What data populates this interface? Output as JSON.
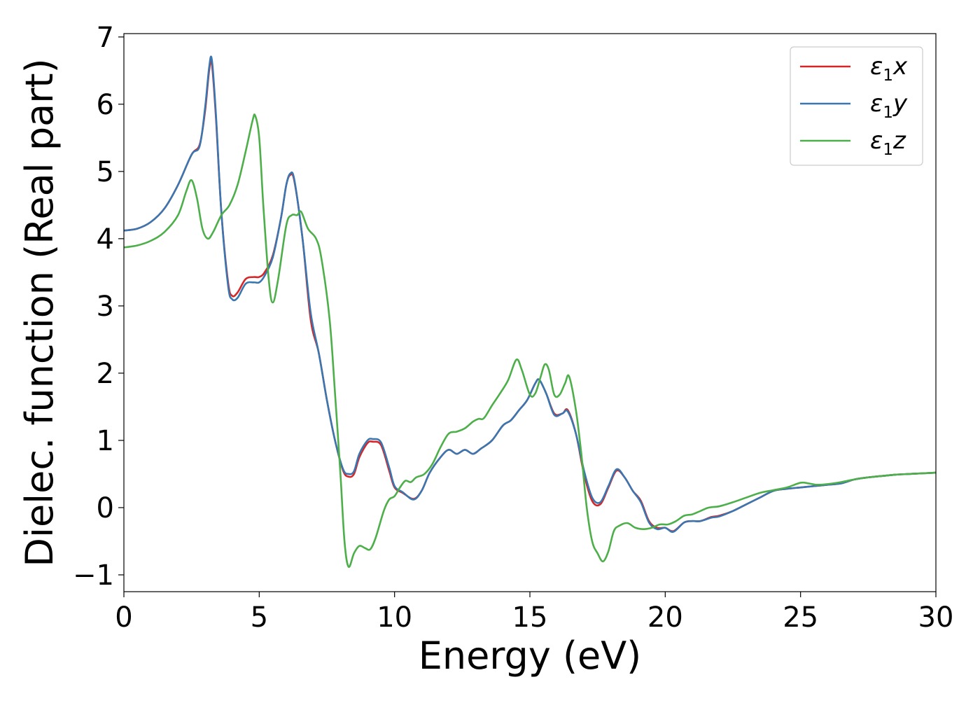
{
  "chart_data": {
    "type": "line",
    "title": "",
    "xlabel": "Energy (eV)",
    "ylabel": "Dielec. function (Real part)",
    "xlim": [
      0,
      30
    ],
    "ylim": [
      -1.25,
      7.05
    ],
    "x_ticks": [
      0,
      5,
      10,
      15,
      20,
      25,
      30
    ],
    "x_tick_labels": [
      "0",
      "5",
      "10",
      "15",
      "20",
      "25",
      "30"
    ],
    "y_ticks": [
      -1,
      0,
      1,
      2,
      3,
      4,
      5,
      6,
      7
    ],
    "y_tick_labels": [
      "−1",
      "0",
      "1",
      "2",
      "3",
      "4",
      "5",
      "6",
      "7"
    ],
    "grid": false,
    "legend_position": "top-right",
    "series": [
      {
        "name": "ε1x",
        "legend_main": "ε",
        "legend_sub": "1",
        "legend_suffix": "x",
        "color": "#d62728",
        "points": [
          [
            0,
            4.12
          ],
          [
            0.5,
            4.15
          ],
          [
            1.0,
            4.25
          ],
          [
            1.5,
            4.45
          ],
          [
            2.0,
            4.8
          ],
          [
            2.5,
            5.25
          ],
          [
            2.8,
            5.4
          ],
          [
            3.0,
            5.9
          ],
          [
            3.15,
            6.5
          ],
          [
            3.25,
            6.6
          ],
          [
            3.4,
            5.8
          ],
          [
            3.6,
            4.4
          ],
          [
            3.85,
            3.35
          ],
          [
            4.0,
            3.15
          ],
          [
            4.2,
            3.2
          ],
          [
            4.5,
            3.4
          ],
          [
            4.8,
            3.43
          ],
          [
            5.0,
            3.43
          ],
          [
            5.2,
            3.5
          ],
          [
            5.5,
            3.75
          ],
          [
            5.8,
            4.3
          ],
          [
            6.0,
            4.8
          ],
          [
            6.15,
            4.95
          ],
          [
            6.3,
            4.85
          ],
          [
            6.6,
            4.0
          ],
          [
            6.9,
            2.8
          ],
          [
            7.2,
            2.3
          ],
          [
            7.5,
            1.6
          ],
          [
            7.8,
            1.0
          ],
          [
            8.1,
            0.55
          ],
          [
            8.3,
            0.46
          ],
          [
            8.5,
            0.5
          ],
          [
            8.7,
            0.75
          ],
          [
            9.0,
            0.96
          ],
          [
            9.2,
            0.98
          ],
          [
            9.5,
            0.93
          ],
          [
            9.8,
            0.55
          ],
          [
            10.0,
            0.3
          ],
          [
            10.3,
            0.22
          ],
          [
            10.7,
            0.13
          ],
          [
            11.0,
            0.25
          ],
          [
            11.3,
            0.52
          ],
          [
            11.7,
            0.75
          ],
          [
            12.0,
            0.86
          ],
          [
            12.3,
            0.8
          ],
          [
            12.6,
            0.86
          ],
          [
            12.9,
            0.8
          ],
          [
            13.2,
            0.88
          ],
          [
            13.6,
            1.0
          ],
          [
            14.0,
            1.22
          ],
          [
            14.3,
            1.3
          ],
          [
            14.6,
            1.45
          ],
          [
            14.9,
            1.6
          ],
          [
            15.2,
            1.85
          ],
          [
            15.35,
            1.9
          ],
          [
            15.6,
            1.7
          ],
          [
            15.9,
            1.4
          ],
          [
            16.2,
            1.4
          ],
          [
            16.4,
            1.45
          ],
          [
            16.7,
            1.1
          ],
          [
            17.0,
            0.5
          ],
          [
            17.3,
            0.1
          ],
          [
            17.6,
            0.05
          ],
          [
            17.9,
            0.3
          ],
          [
            18.2,
            0.55
          ],
          [
            18.5,
            0.45
          ],
          [
            18.8,
            0.25
          ],
          [
            19.1,
            0.1
          ],
          [
            19.4,
            -0.2
          ],
          [
            19.7,
            -0.3
          ],
          [
            20.0,
            -0.3
          ],
          [
            20.3,
            -0.35
          ],
          [
            20.7,
            -0.22
          ],
          [
            21.0,
            -0.2
          ],
          [
            21.3,
            -0.2
          ],
          [
            21.7,
            -0.14
          ],
          [
            22.0,
            -0.12
          ],
          [
            22.5,
            -0.05
          ],
          [
            23.0,
            0.05
          ],
          [
            23.5,
            0.15
          ],
          [
            24.0,
            0.25
          ],
          [
            24.5,
            0.28
          ],
          [
            25.0,
            0.3
          ],
          [
            25.5,
            0.32
          ],
          [
            26.0,
            0.34
          ],
          [
            26.5,
            0.36
          ],
          [
            27.0,
            0.42
          ],
          [
            27.5,
            0.45
          ],
          [
            28.0,
            0.47
          ],
          [
            28.5,
            0.49
          ],
          [
            29.0,
            0.5
          ],
          [
            29.5,
            0.51
          ],
          [
            30.0,
            0.52
          ]
        ]
      },
      {
        "name": "ε1y",
        "legend_main": "ε",
        "legend_sub": "1",
        "legend_suffix": "y",
        "color": "#3a76b0",
        "points": [
          [
            0,
            4.12
          ],
          [
            0.5,
            4.15
          ],
          [
            1.0,
            4.25
          ],
          [
            1.5,
            4.45
          ],
          [
            2.0,
            4.8
          ],
          [
            2.5,
            5.25
          ],
          [
            2.8,
            5.38
          ],
          [
            3.0,
            5.95
          ],
          [
            3.15,
            6.55
          ],
          [
            3.25,
            6.66
          ],
          [
            3.4,
            5.85
          ],
          [
            3.6,
            4.4
          ],
          [
            3.85,
            3.3
          ],
          [
            4.0,
            3.1
          ],
          [
            4.2,
            3.12
          ],
          [
            4.5,
            3.33
          ],
          [
            4.8,
            3.35
          ],
          [
            5.0,
            3.35
          ],
          [
            5.2,
            3.45
          ],
          [
            5.5,
            3.72
          ],
          [
            5.8,
            4.3
          ],
          [
            6.0,
            4.8
          ],
          [
            6.15,
            4.97
          ],
          [
            6.3,
            4.87
          ],
          [
            6.6,
            4.0
          ],
          [
            6.9,
            2.9
          ],
          [
            7.2,
            2.3
          ],
          [
            7.5,
            1.6
          ],
          [
            7.8,
            1.0
          ],
          [
            8.1,
            0.57
          ],
          [
            8.3,
            0.5
          ],
          [
            8.5,
            0.54
          ],
          [
            8.7,
            0.8
          ],
          [
            9.0,
            1.0
          ],
          [
            9.2,
            1.02
          ],
          [
            9.5,
            0.97
          ],
          [
            9.8,
            0.6
          ],
          [
            10.0,
            0.32
          ],
          [
            10.3,
            0.23
          ],
          [
            10.7,
            0.12
          ],
          [
            11.0,
            0.25
          ],
          [
            11.3,
            0.52
          ],
          [
            11.7,
            0.75
          ],
          [
            12.0,
            0.86
          ],
          [
            12.3,
            0.8
          ],
          [
            12.6,
            0.86
          ],
          [
            12.9,
            0.8
          ],
          [
            13.2,
            0.88
          ],
          [
            13.6,
            1.0
          ],
          [
            14.0,
            1.22
          ],
          [
            14.3,
            1.3
          ],
          [
            14.6,
            1.45
          ],
          [
            14.9,
            1.6
          ],
          [
            15.2,
            1.85
          ],
          [
            15.35,
            1.9
          ],
          [
            15.6,
            1.7
          ],
          [
            15.9,
            1.38
          ],
          [
            16.2,
            1.4
          ],
          [
            16.4,
            1.43
          ],
          [
            16.7,
            1.1
          ],
          [
            17.0,
            0.55
          ],
          [
            17.3,
            0.15
          ],
          [
            17.6,
            0.08
          ],
          [
            17.9,
            0.32
          ],
          [
            18.2,
            0.57
          ],
          [
            18.5,
            0.45
          ],
          [
            18.8,
            0.25
          ],
          [
            19.1,
            0.08
          ],
          [
            19.4,
            -0.22
          ],
          [
            19.7,
            -0.32
          ],
          [
            20.0,
            -0.3
          ],
          [
            20.3,
            -0.36
          ],
          [
            20.7,
            -0.22
          ],
          [
            21.0,
            -0.2
          ],
          [
            21.3,
            -0.2
          ],
          [
            21.7,
            -0.15
          ],
          [
            22.0,
            -0.13
          ],
          [
            22.5,
            -0.05
          ],
          [
            23.0,
            0.05
          ],
          [
            23.5,
            0.15
          ],
          [
            24.0,
            0.25
          ],
          [
            24.5,
            0.28
          ],
          [
            25.0,
            0.3
          ],
          [
            25.5,
            0.32
          ],
          [
            26.0,
            0.34
          ],
          [
            26.5,
            0.36
          ],
          [
            27.0,
            0.42
          ],
          [
            27.5,
            0.45
          ],
          [
            28.0,
            0.47
          ],
          [
            28.5,
            0.49
          ],
          [
            29.0,
            0.5
          ],
          [
            29.5,
            0.51
          ],
          [
            30.0,
            0.52
          ]
        ]
      },
      {
        "name": "ε1z",
        "legend_main": "ε",
        "legend_sub": "1",
        "legend_suffix": "z",
        "color": "#4daf4a",
        "points": [
          [
            0,
            3.87
          ],
          [
            0.5,
            3.9
          ],
          [
            1.0,
            3.97
          ],
          [
            1.5,
            4.1
          ],
          [
            2.0,
            4.35
          ],
          [
            2.3,
            4.7
          ],
          [
            2.5,
            4.87
          ],
          [
            2.7,
            4.6
          ],
          [
            2.9,
            4.15
          ],
          [
            3.1,
            4.0
          ],
          [
            3.3,
            4.1
          ],
          [
            3.6,
            4.35
          ],
          [
            3.9,
            4.5
          ],
          [
            4.2,
            4.8
          ],
          [
            4.5,
            5.3
          ],
          [
            4.75,
            5.75
          ],
          [
            4.85,
            5.83
          ],
          [
            5.0,
            5.5
          ],
          [
            5.15,
            4.5
          ],
          [
            5.35,
            3.4
          ],
          [
            5.5,
            3.05
          ],
          [
            5.7,
            3.4
          ],
          [
            6.0,
            4.2
          ],
          [
            6.2,
            4.35
          ],
          [
            6.4,
            4.35
          ],
          [
            6.55,
            4.4
          ],
          [
            6.8,
            4.15
          ],
          [
            7.1,
            4.0
          ],
          [
            7.3,
            3.7
          ],
          [
            7.6,
            2.8
          ],
          [
            7.8,
            1.7
          ],
          [
            8.0,
            0.5
          ],
          [
            8.15,
            -0.5
          ],
          [
            8.3,
            -0.88
          ],
          [
            8.5,
            -0.68
          ],
          [
            8.7,
            -0.57
          ],
          [
            8.9,
            -0.6
          ],
          [
            9.1,
            -0.62
          ],
          [
            9.3,
            -0.45
          ],
          [
            9.6,
            -0.05
          ],
          [
            9.8,
            0.12
          ],
          [
            10.0,
            0.17
          ],
          [
            10.2,
            0.3
          ],
          [
            10.4,
            0.4
          ],
          [
            10.6,
            0.38
          ],
          [
            10.8,
            0.45
          ],
          [
            11.1,
            0.5
          ],
          [
            11.4,
            0.65
          ],
          [
            11.7,
            0.9
          ],
          [
            12.0,
            1.1
          ],
          [
            12.3,
            1.13
          ],
          [
            12.6,
            1.18
          ],
          [
            12.9,
            1.28
          ],
          [
            13.1,
            1.32
          ],
          [
            13.3,
            1.33
          ],
          [
            13.6,
            1.52
          ],
          [
            13.9,
            1.7
          ],
          [
            14.2,
            1.9
          ],
          [
            14.5,
            2.2
          ],
          [
            14.7,
            2.05
          ],
          [
            15.0,
            1.68
          ],
          [
            15.2,
            1.7
          ],
          [
            15.4,
            1.95
          ],
          [
            15.55,
            2.13
          ],
          [
            15.7,
            2.05
          ],
          [
            15.9,
            1.68
          ],
          [
            16.1,
            1.68
          ],
          [
            16.3,
            1.85
          ],
          [
            16.45,
            1.95
          ],
          [
            16.7,
            1.45
          ],
          [
            16.9,
            0.8
          ],
          [
            17.1,
            0.0
          ],
          [
            17.3,
            -0.5
          ],
          [
            17.5,
            -0.68
          ],
          [
            17.7,
            -0.8
          ],
          [
            17.9,
            -0.65
          ],
          [
            18.1,
            -0.35
          ],
          [
            18.3,
            -0.27
          ],
          [
            18.6,
            -0.23
          ],
          [
            18.9,
            -0.3
          ],
          [
            19.2,
            -0.32
          ],
          [
            19.5,
            -0.3
          ],
          [
            19.8,
            -0.25
          ],
          [
            20.1,
            -0.25
          ],
          [
            20.4,
            -0.2
          ],
          [
            20.7,
            -0.12
          ],
          [
            21.0,
            -0.1
          ],
          [
            21.3,
            -0.05
          ],
          [
            21.6,
            0.0
          ],
          [
            22.0,
            0.02
          ],
          [
            22.5,
            0.08
          ],
          [
            23.0,
            0.15
          ],
          [
            23.5,
            0.22
          ],
          [
            24.0,
            0.26
          ],
          [
            24.5,
            0.3
          ],
          [
            25.0,
            0.37
          ],
          [
            25.3,
            0.36
          ],
          [
            25.6,
            0.34
          ],
          [
            26.0,
            0.35
          ],
          [
            26.5,
            0.38
          ],
          [
            27.0,
            0.42
          ],
          [
            27.5,
            0.45
          ],
          [
            28.0,
            0.47
          ],
          [
            28.5,
            0.49
          ],
          [
            29.0,
            0.5
          ],
          [
            29.5,
            0.51
          ],
          [
            30.0,
            0.52
          ]
        ]
      }
    ]
  }
}
